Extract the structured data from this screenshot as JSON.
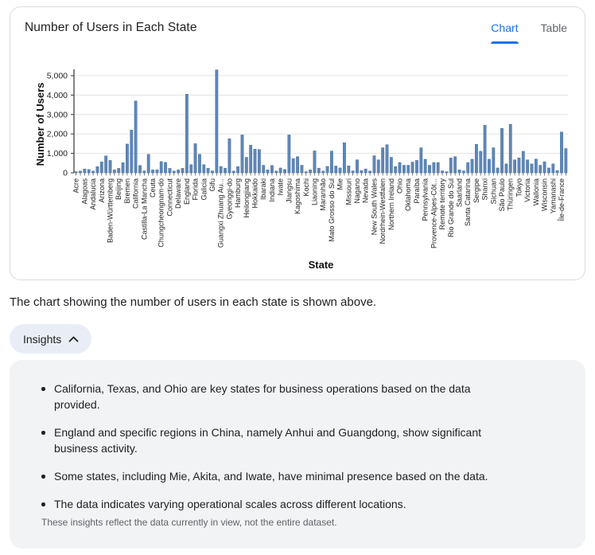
{
  "card": {
    "title": "Number of Users in Each State",
    "tabs": [
      {
        "label": "Chart",
        "active": true
      },
      {
        "label": "Table",
        "active": false
      }
    ]
  },
  "chart_data": {
    "type": "bar",
    "title": "Number of Users in Each State",
    "xlabel": "State",
    "ylabel": "Number of Users",
    "ylim": [
      0,
      5300
    ],
    "yticks": [
      0,
      1000,
      2000,
      3000,
      4000,
      5000
    ],
    "ytick_labels": [
      "0",
      "1,000",
      "2,000",
      "3,000",
      "4,000",
      "5,000"
    ],
    "grid": true,
    "bar_color": "#5e87b8",
    "bar_edge_color": "#41699c",
    "label_every_nth_bar": 2,
    "note": "116 bars; only every 2nd bar carries a visible category label",
    "categories": [
      "Acre",
      "Alagoas",
      "Andalucia",
      "Arizona",
      "Baden-Württemberg",
      "Beijing",
      "Bremen",
      "California",
      "Castilla-La Mancha",
      "Ceuta",
      "Chungcheongnam-do",
      "Connecticut",
      "Delaware",
      "England",
      "Florida",
      "Galicia",
      "Gifu",
      "Guangxi Zhuang Au...",
      "Gyeonggi-do",
      "Hamburg",
      "Heilongjiang",
      "Hokkaido",
      "Ibaraki",
      "Indiana",
      "Iwate",
      "Jiangsu",
      "Kagoshima",
      "Kochi",
      "Liaoning",
      "Maranhão",
      "Mato Grosso do Sul",
      "Mie",
      "Missouri",
      "Nagano",
      "Nevada",
      "New South Wales",
      "Nordrhein-Westfalen",
      "Northern Ireland",
      "Ohio",
      "Oklahoma",
      "Paraíba",
      "Pennsylvania",
      "Provence-Alpes-Côt...",
      "Remote territory",
      "Rio Grande do Sul",
      "Saarland",
      "Santa Catarina",
      "Sergipe",
      "Shanxi",
      "Sichuan",
      "São Paulo",
      "Thüringen",
      "Tokyo",
      "Victoria",
      "Wallonia",
      "Wisconsin",
      "Yamanashi",
      "Île-de-France"
    ],
    "values": [
      60,
      90,
      200,
      170,
      90,
      320,
      560,
      870,
      640,
      150,
      230,
      520,
      1480,
      2200,
      3700,
      380,
      100,
      950,
      150,
      160,
      580,
      540,
      230,
      90,
      150,
      230,
      4050,
      420,
      1500,
      950,
      420,
      240,
      100,
      5300,
      330,
      240,
      1750,
      90,
      320,
      1950,
      800,
      1420,
      1220,
      1200,
      390,
      150,
      380,
      90,
      250,
      170,
      1950,
      735,
      830,
      390,
      60,
      150,
      1130,
      240,
      90,
      330,
      1120,
      350,
      250,
      1550,
      360,
      100,
      670,
      120,
      200,
      90,
      880,
      670,
      1290,
      1450,
      800,
      320,
      530,
      390,
      390,
      555,
      640,
      1290,
      700,
      390,
      530,
      530,
      100,
      60,
      765,
      835,
      150,
      100,
      530,
      700,
      1470,
      1110,
      2450,
      700,
      1290,
      250,
      2290,
      460,
      2500,
      670,
      765,
      1110,
      670,
      460,
      710,
      390,
      570,
      250,
      460,
      120,
      2100,
      1250
    ]
  },
  "caption": "The chart showing the number of users in each state is shown above.",
  "insights": {
    "button_label": "Insights",
    "chevron_icon": "chevron-up",
    "bullets": [
      "California, Texas, and Ohio are key states for business operations based on the data provided.",
      "England and specific regions in China, namely Anhui and Guangdong, show significant business activity.",
      "Some states, including Mie, Akita, and Iwate, have minimal presence based on the data.",
      "The data indicates varying operational scales across different locations."
    ],
    "footnote": "These insights reflect the data currently in view, not the entire dataset."
  },
  "colors": {
    "accent_blue": "#1a73e8",
    "tab_inactive": "#5f6368",
    "card_border": "#dadce0",
    "gridline": "#e3e3e3",
    "axis_line": "#333333",
    "insights_button_bg": "#e9eef6",
    "insights_panel_bg": "#f1f3f4",
    "bar": "#5e87b8"
  }
}
